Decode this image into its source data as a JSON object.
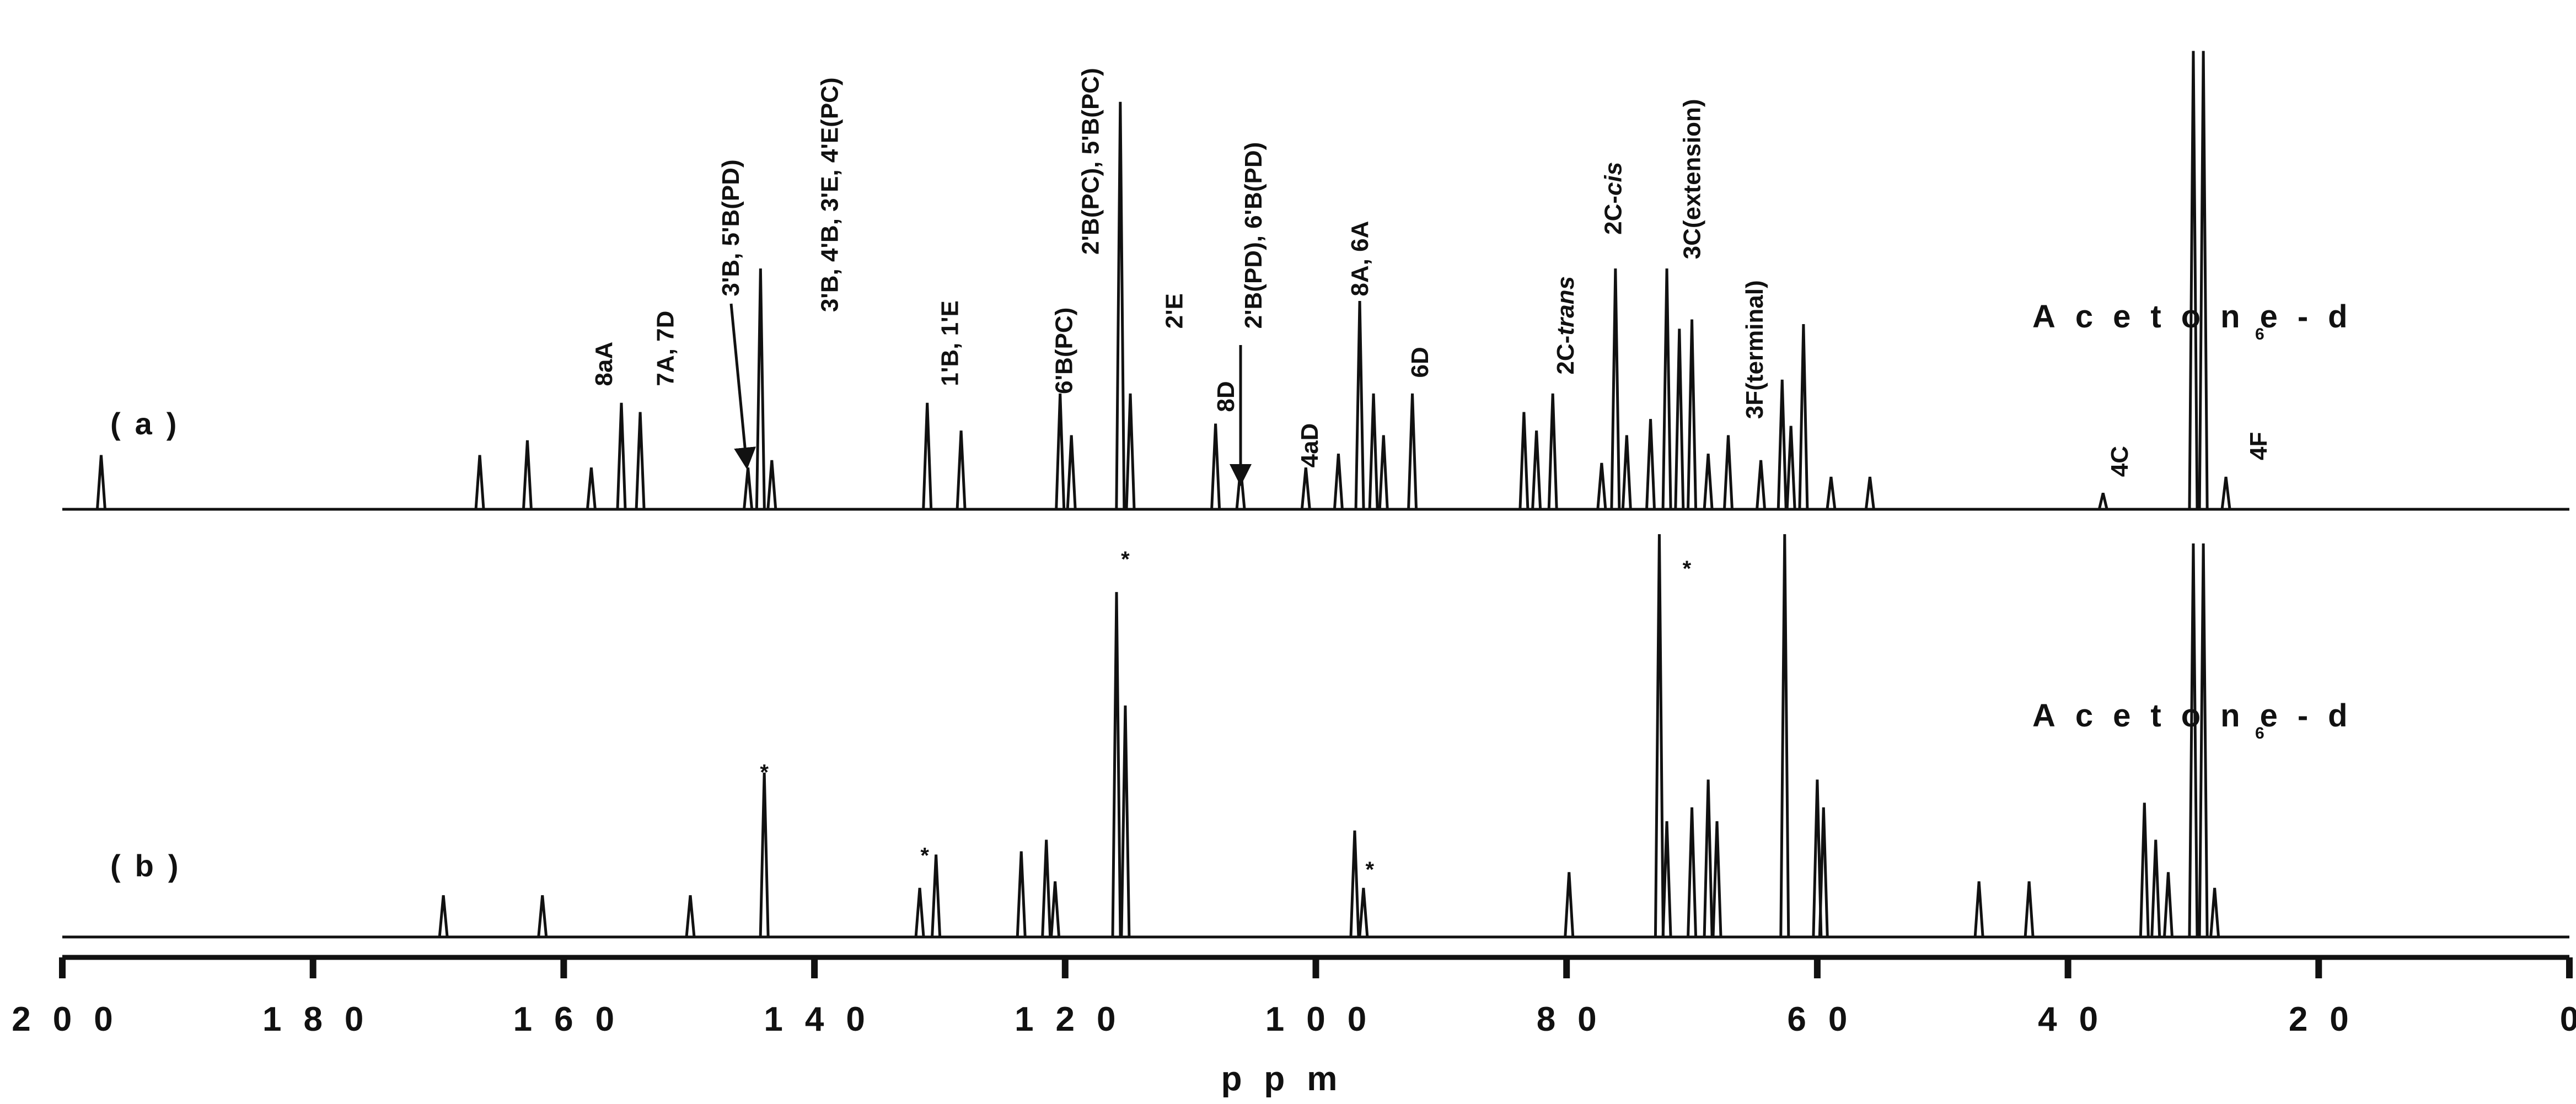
{
  "chart_data": {
    "type": "line",
    "x_label": "ppm",
    "xlim": [
      200,
      0
    ],
    "xticks": [
      200,
      180,
      160,
      140,
      120,
      100,
      80,
      60,
      40,
      20,
      0
    ],
    "ylim": [
      0,
      100
    ],
    "color": "#111111",
    "series": [
      {
        "name": "(a)",
        "solvent": "Acetone-d",
        "solvent_sub": "6",
        "x": [
          196.9,
          166.7,
          162.9,
          157.8,
          155.4,
          153.9,
          145.3,
          144.3,
          143.4,
          131.0,
          128.3,
          120.4,
          119.5,
          115.6,
          114.8,
          108.0,
          106.0,
          100.8,
          98.2,
          96.5,
          95.4,
          94.6,
          92.3,
          83.4,
          82.4,
          81.1,
          77.2,
          76.1,
          75.2,
          73.3,
          72.0,
          71.0,
          70.0,
          68.7,
          67.1,
          64.5,
          62.8,
          62.1,
          61.1,
          58.9,
          55.8,
          37.2,
          30.0,
          29.2,
          27.4
        ],
        "values": [
          11.7,
          11.7,
          14.9,
          9,
          23,
          21,
          9,
          52,
          10.6,
          23,
          17,
          25,
          16,
          88,
          25,
          18.5,
          9,
          9,
          12,
          45,
          25,
          16,
          25,
          21,
          17,
          25,
          10,
          52,
          16,
          19.5,
          52,
          39,
          41,
          12,
          16,
          10.6,
          28,
          18,
          40,
          7,
          7,
          3.5,
          99,
          99,
          7
        ],
        "annotations": [
          {
            "label": "8aA",
            "x": 156.8,
            "y": 26.6
          },
          {
            "label": "7A, 7D",
            "x": 151.9,
            "y": 26.6
          },
          {
            "label": "3'B, 5'B(PD)",
            "x": 146.7,
            "y": 46
          },
          {
            "label": "3'B, 4'B, 3'E, 4'E(PC)",
            "x": 138.8,
            "y": 42.6
          },
          {
            "label": "1'B, 1'E",
            "x": 129.2,
            "y": 26.6
          },
          {
            "label": "6'B(PC)",
            "x": 120.1,
            "y": 24.9
          },
          {
            "label": "2'B(PC), 5'B(PC)",
            "x": 118.0,
            "y": 55
          },
          {
            "label": "2'E",
            "x": 111.3,
            "y": 39
          },
          {
            "label": "8D",
            "x": 107.2,
            "y": 21
          },
          {
            "label": "2'B(PD), 6'B(PD)",
            "x": 105.0,
            "y": 39
          },
          {
            "label": "4aD",
            "x": 100.5,
            "y": 9
          },
          {
            "label": "8A, 6A",
            "x": 96.5,
            "y": 46
          },
          {
            "label": "6D",
            "x": 91.7,
            "y": 28.4
          },
          {
            "label": "2C-",
            "italic": "trans",
            "x": 80.1,
            "y": 29.1
          },
          {
            "label": "2C-",
            "italic": "cis",
            "x": 76.3,
            "y": 59.3
          },
          {
            "label": "3C(extension)",
            "x": 70.0,
            "y": 54
          },
          {
            "label": "3F(terminal)",
            "x": 65.0,
            "y": 19.5
          },
          {
            "label": "4C",
            "x": 35.9,
            "y": 7
          },
          {
            "label": "4F",
            "x": 24.8,
            "y": 10.6
          }
        ]
      },
      {
        "name": "(b)",
        "solvent": "Acetone-d",
        "solvent_sub": "6",
        "x": [
          169.6,
          161.7,
          149.9,
          144.0,
          131.6,
          130.3,
          123.5,
          121.5,
          120.8,
          115.9,
          115.2,
          96.9,
          96.2,
          79.8,
          72.6,
          72.0,
          70.0,
          68.7,
          68.0,
          62.6,
          60.0,
          59.5,
          47.1,
          43.1,
          33.9,
          33.0,
          32.0,
          30.0,
          29.2,
          28.3
        ],
        "values": [
          9,
          9,
          9,
          35.5,
          10.6,
          17.8,
          18.5,
          21,
          12,
          74.5,
          50,
          23,
          10.6,
          14,
          87,
          25,
          28,
          34,
          25,
          87,
          34,
          28,
          12,
          12,
          29,
          21,
          14,
          85,
          85,
          10.6
        ],
        "annotations": [
          {
            "label": "*",
            "x": 144.0,
            "y": 34
          },
          {
            "label": "*",
            "x": 131.2,
            "y": 16
          },
          {
            "label": "*",
            "x": 115.2,
            "y": 80
          },
          {
            "label": "*",
            "x": 95.7,
            "y": 13
          },
          {
            "label": "*",
            "x": 70.4,
            "y": 78
          }
        ]
      }
    ]
  }
}
